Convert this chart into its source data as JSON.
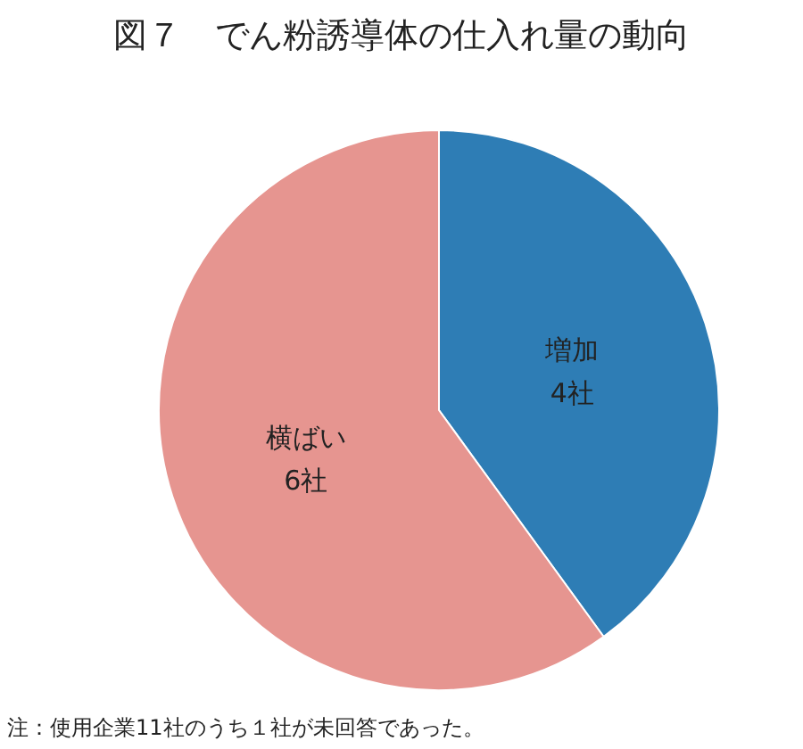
{
  "chart_data": {
    "type": "pie",
    "title": "図７　でん粉誘導体の仕入れ量の動向",
    "categories": [
      "増加",
      "横ばい"
    ],
    "values": [
      4,
      6
    ],
    "colors": [
      "#2e7db5",
      "#e69590"
    ],
    "value_labels": [
      "4社",
      "6社"
    ],
    "annotations": [
      "注：使用企業11社のうち１社が未回答であった。"
    ]
  }
}
